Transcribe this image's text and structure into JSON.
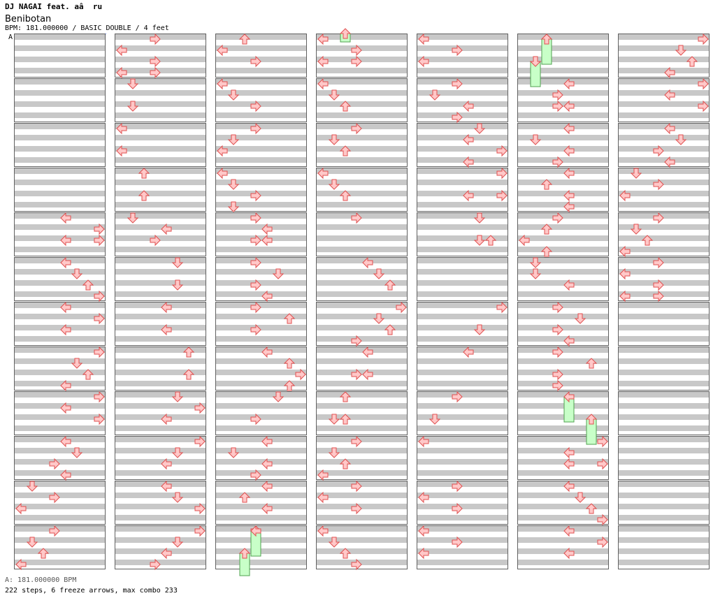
{
  "header": {
    "artist": "DJ NAGAI feat. aâ  ru",
    "title": "Benibotan",
    "info": "BPM: 181.000000 / BASIC DOUBLE / 4 feet",
    "bpm_marker": "A"
  },
  "footer": {
    "bpm_line": "A: 181.000000 BPM",
    "summary": "222 steps, 6 freeze arrows, max combo 233"
  },
  "colors": {
    "arrow_fill": "#ffc8c8",
    "arrow_stroke": "#e05050",
    "freeze_fill": "#c8ffc8",
    "freeze_stroke": "#50a050",
    "row_shade": "#c8c8c8"
  },
  "chart": {
    "lanes": [
      "left",
      "down",
      "up",
      "right",
      "left",
      "down",
      "up",
      "right"
    ],
    "columns": [
      {
        "measures": [
          [],
          [],
          [],
          [],
          [
            [
              0,
              "L"
            ],
            [
              7,
              "R"
            ],
            [
              11,
              "R"
            ],
            [
              3,
              "L"
            ]
          ],
          [
            [
              0,
              "L"
            ],
            [
              2,
              "D"
            ],
            [
              4,
              "U"
            ],
            [
              6,
              "R"
            ]
          ],
          [
            [
              0,
              "L"
            ],
            [
              2,
              "R"
            ],
            [
              4,
              "L"
            ]
          ],
          [
            [
              0,
              "R"
            ],
            [
              2,
              "D"
            ],
            [
              4,
              "U"
            ],
            [
              6,
              "L"
            ]
          ],
          [
            [
              0,
              "R"
            ],
            [
              2,
              "L"
            ],
            [
              4,
              "R"
            ]
          ],
          [
            [
              0,
              "L"
            ],
            [
              2,
              "D"
            ],
            [
              4,
              "L2"
            ],
            [
              6,
              "L"
            ]
          ],
          [
            [
              0,
              "L2"
            ],
            [
              1,
              "D1"
            ],
            [
              3,
              "R2"
            ],
            [
              4,
              "L0"
            ]
          ],
          [
            [
              0,
              "L2"
            ],
            [
              2,
              "D1"
            ],
            [
              4,
              "U2"
            ],
            [
              6,
              "L0"
            ]
          ]
        ]
      }
    ]
  }
}
